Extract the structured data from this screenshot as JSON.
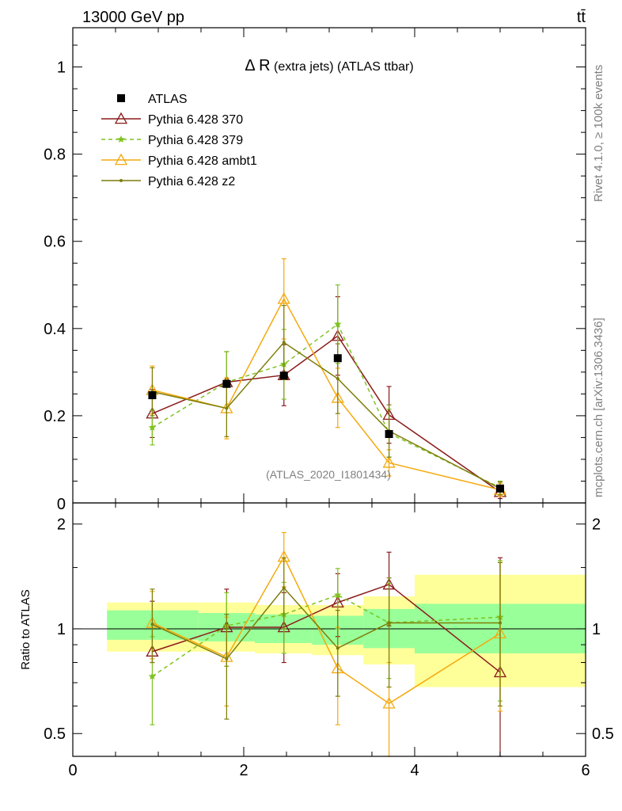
{
  "header": {
    "energy_label": "13000 GeV pp",
    "process_label": "tt̄",
    "watermark": "(ATLAS_2020_I1801434)",
    "side_rivet": "Rivet 4.1.0, ≥ 100k events",
    "side_mcplots": "mcplots.cern.ch [arXiv:1306.3436]"
  },
  "chart_data": {
    "type": "line",
    "title_symbol": "Δ R",
    "title_rest": " (extra jets) (ATLAS ttbar)",
    "x_ticks": [
      "0",
      "2",
      "4",
      "6"
    ],
    "main_y_ticks": [
      "0.2",
      "0.4",
      "0.6",
      "0.8",
      "1"
    ],
    "main_y_zero": "0",
    "ratio_y_ticks": [
      "0.5",
      "1",
      "2"
    ],
    "ratio_ylabel": "Ratio to ATLAS",
    "xlim": [
      0,
      6
    ],
    "main_ylim": [
      0,
      1.09
    ],
    "ratio_ylim": [
      0.43,
      2.3
    ],
    "data": {
      "name": "ATLAS",
      "x": [
        0.93,
        1.8,
        2.47,
        3.1,
        3.7,
        5.0
      ],
      "y": [
        0.247,
        0.273,
        0.292,
        0.332,
        0.158,
        0.033
      ],
      "bins": [
        [
          0.4,
          1.47
        ],
        [
          1.47,
          2.13
        ],
        [
          2.13,
          2.8
        ],
        [
          2.8,
          3.4
        ],
        [
          3.4,
          4.0
        ],
        [
          4.0,
          6.0
        ]
      ],
      "band_inner": [
        [
          0.93,
          1.13
        ],
        [
          0.92,
          1.11
        ],
        [
          0.91,
          1.1
        ],
        [
          0.9,
          1.09
        ],
        [
          0.88,
          1.14
        ],
        [
          0.85,
          1.18
        ]
      ],
      "band_outer": [
        [
          0.86,
          1.19
        ],
        [
          0.86,
          1.19
        ],
        [
          0.85,
          1.17
        ],
        [
          0.84,
          1.17
        ],
        [
          0.79,
          1.24
        ],
        [
          0.68,
          1.43
        ]
      ]
    },
    "series": [
      {
        "name": "Pythia 6.428 370",
        "color": "#8b1a1a",
        "marker": "triangle-open",
        "dash": "",
        "x": [
          0.93,
          1.8,
          2.47,
          3.1,
          3.7,
          5.0
        ],
        "y": [
          0.205,
          0.277,
          0.293,
          0.383,
          0.202,
          0.025
        ],
        "yerr": [
          0.055,
          0.07,
          0.07,
          0.09,
          0.065,
          0.015
        ],
        "ratio": [
          0.86,
          1.01,
          1.01,
          1.19,
          1.34,
          0.75
        ],
        "ratio_err": [
          [
            0.8,
            1.2
          ],
          [
            0.78,
            1.3
          ],
          [
            0.8,
            1.27
          ],
          [
            0.95,
            1.44
          ],
          [
            1.02,
            1.66
          ],
          [
            0.35,
            1.6
          ]
        ]
      },
      {
        "name": "Pythia 6.428 379",
        "color": "#7ec21f",
        "marker": "star",
        "dash": "5,4",
        "x": [
          0.93,
          1.8,
          2.47,
          3.1,
          3.7,
          5.0
        ],
        "y": [
          0.173,
          0.277,
          0.318,
          0.41,
          0.16,
          0.035
        ],
        "yerr": [
          0.04,
          0.07,
          0.08,
          0.09,
          0.055,
          0.015
        ],
        "ratio": [
          0.73,
          1.02,
          1.1,
          1.25,
          1.04,
          1.08
        ],
        "ratio_err": [
          [
            0.53,
            0.95
          ],
          [
            0.78,
            1.27
          ],
          [
            0.85,
            1.36
          ],
          [
            1.0,
            1.49
          ],
          [
            0.72,
            1.35
          ],
          [
            0.62,
            1.57
          ]
        ]
      },
      {
        "name": "Pythia 6.428 ambt1",
        "color": "#f4a90e",
        "marker": "triangle-open",
        "dash": "",
        "x": [
          0.93,
          1.8,
          2.47,
          3.1,
          3.7,
          5.0
        ],
        "y": [
          0.259,
          0.217,
          0.468,
          0.241,
          0.092,
          0.03
        ],
        "yerr": [
          0.055,
          0.07,
          0.092,
          0.068,
          0.03,
          0.015
        ],
        "ratio": [
          1.04,
          0.83,
          1.61,
          0.77,
          0.61,
          0.97
        ],
        "ratio_err": [
          [
            0.82,
            1.28
          ],
          [
            0.6,
            1.08
          ],
          [
            1.32,
            1.89
          ],
          [
            0.53,
            1.01
          ],
          [
            0.4,
            0.8
          ],
          [
            0.58,
            1.55
          ]
        ]
      },
      {
        "name": "Pythia 6.428 z2",
        "color": "#7d7d0a",
        "marker": "dot",
        "dash": "",
        "x": [
          0.93,
          1.8,
          2.47,
          3.1,
          3.7,
          5.0
        ],
        "y": [
          0.255,
          0.217,
          0.368,
          0.285,
          0.165,
          0.033
        ],
        "yerr": [
          0.055,
          0.065,
          0.085,
          0.08,
          0.06,
          0.015
        ],
        "ratio": [
          1.03,
          0.82,
          1.31,
          0.88,
          1.04,
          1.04
        ],
        "ratio_err": [
          [
            0.8,
            1.3
          ],
          [
            0.55,
            1.1
          ],
          [
            1.0,
            1.6
          ],
          [
            0.64,
            1.13
          ],
          [
            0.68,
            1.4
          ],
          [
            0.6,
            1.55
          ]
        ]
      }
    ]
  }
}
